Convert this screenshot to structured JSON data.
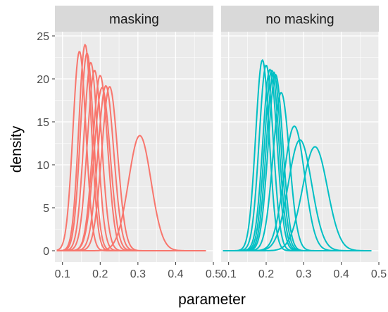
{
  "chart_data": {
    "type": "line",
    "title": "",
    "xlabel": "parameter",
    "ylabel": "density",
    "xlim": [
      0.08,
      0.5
    ],
    "ylim": [
      0,
      25
    ],
    "x_ticks": [
      0.1,
      0.2,
      0.3,
      0.4,
      0.5
    ],
    "x_tick_labels": [
      "0.1",
      "0.2",
      "0.3",
      "0.4",
      "0.5"
    ],
    "y_ticks": [
      0,
      5,
      10,
      15,
      20,
      25
    ],
    "y_tick_labels": [
      "0",
      "5",
      "10",
      "15",
      "20",
      "25"
    ],
    "grid": true,
    "legend": "none",
    "panels": [
      {
        "label": "masking",
        "color": "#F8766D",
        "x_range": [
          0.085,
          0.48
        ],
        "curves": [
          {
            "mean": 0.145,
            "sd": 0.0172,
            "peak": 23.2
          },
          {
            "mean": 0.16,
            "sd": 0.0167,
            "peak": 24.0
          },
          {
            "mean": 0.165,
            "sd": 0.0173,
            "peak": 23.0
          },
          {
            "mean": 0.175,
            "sd": 0.0182,
            "peak": 21.9
          },
          {
            "mean": 0.185,
            "sd": 0.019,
            "peak": 21.0
          },
          {
            "mean": 0.2,
            "sd": 0.0195,
            "peak": 20.4
          },
          {
            "mean": 0.205,
            "sd": 0.021,
            "peak": 19.0
          },
          {
            "mean": 0.215,
            "sd": 0.0208,
            "peak": 19.2
          },
          {
            "mean": 0.225,
            "sd": 0.0209,
            "peak": 19.1
          },
          {
            "mean": 0.305,
            "sd": 0.0298,
            "peak": 13.4
          }
        ]
      },
      {
        "label": "no masking",
        "color": "#00BFC4",
        "x_range": [
          0.085,
          0.48
        ],
        "curves": [
          {
            "mean": 0.19,
            "sd": 0.018,
            "peak": 22.2
          },
          {
            "mean": 0.2,
            "sd": 0.0185,
            "peak": 21.6
          },
          {
            "mean": 0.21,
            "sd": 0.0189,
            "peak": 21.1
          },
          {
            "mean": 0.215,
            "sd": 0.019,
            "peak": 21.0
          },
          {
            "mean": 0.22,
            "sd": 0.0192,
            "peak": 20.8
          },
          {
            "mean": 0.225,
            "sd": 0.0195,
            "peak": 20.5
          },
          {
            "mean": 0.24,
            "sd": 0.0217,
            "peak": 18.4
          },
          {
            "mean": 0.275,
            "sd": 0.0275,
            "peak": 14.5
          },
          {
            "mean": 0.29,
            "sd": 0.031,
            "peak": 12.9
          },
          {
            "mean": 0.33,
            "sd": 0.033,
            "peak": 12.1
          }
        ]
      }
    ]
  }
}
